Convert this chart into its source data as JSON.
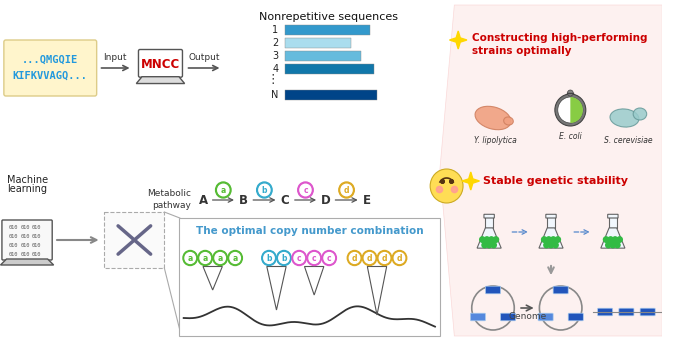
{
  "bg_color": "#ffffff",
  "seq_text_line1": "...QMGQIE",
  "seq_text_line2": "KIFKVVAGQ...",
  "seq_box_color": "#FFF5CC",
  "mncc_color": "#CC0000",
  "bar_colors": [
    "#3399CC",
    "#AADDEE",
    "#66BBDD",
    "#1177AA",
    "#004488"
  ],
  "bar_labels": [
    "1",
    "2",
    "3",
    "4",
    "N"
  ],
  "nonrep_title": "Nonrepetitive sequences",
  "output_label": "Output",
  "input_label": "Input",
  "constructing_text_1": "Constructing high-performing",
  "constructing_text_2": "strains optimally",
  "stable_text": "Stable genetic stability",
  "star_color": "#FFD700",
  "red_text_color": "#CC0000",
  "metabolic_text_1": "Metabolic",
  "metabolic_text_2": "pathway",
  "optimal_text": "The optimal copy number combination",
  "optimal_text_color": "#4499CC",
  "machine_text_1": "Machine",
  "machine_text_2": "learning",
  "pathway_letters": [
    "A",
    "B",
    "C",
    "D",
    "E"
  ],
  "enzyme_colors": [
    "#55BB33",
    "#33AACC",
    "#DD55CC",
    "#DDAA22"
  ],
  "enzyme_letters": [
    "a",
    "b",
    "c",
    "d"
  ],
  "genome_text": "Genome",
  "ylipolytica": "Y. lipolytica",
  "ecoli": "E. coli",
  "scerevisiae": "S. cerevisiae",
  "fan_color": "#FDECEA",
  "laptop_screen_color": "#ffffff",
  "laptop_edge_color": "#555555"
}
